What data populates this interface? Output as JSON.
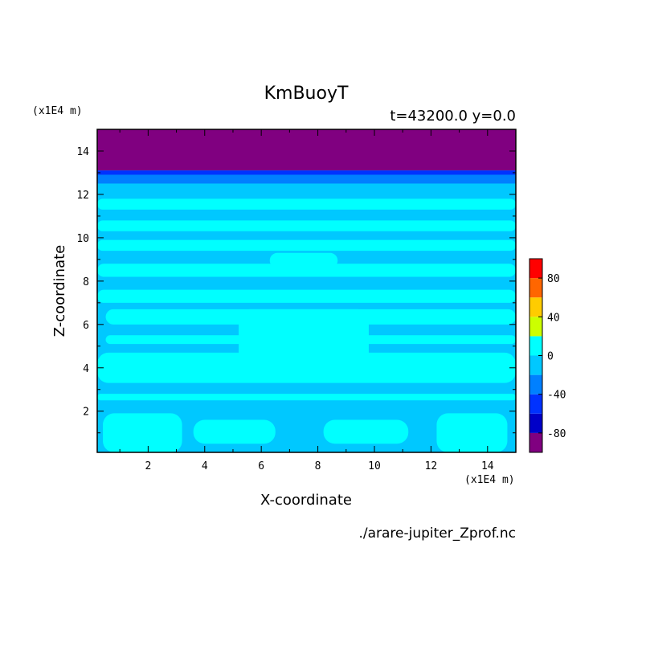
{
  "chart_data": {
    "type": "heatmap",
    "title": "KmBuoyT",
    "subtitle": "t=43200.0 y=0.0",
    "xlabel": "X-coordinate",
    "ylabel": "Z-coordinate",
    "x_unit": "(x1E4 m)",
    "y_unit": "(x1E4 m)",
    "source_file": "./arare-jupiter_Zprof.nc",
    "xlim": [
      0.2,
      15.0
    ],
    "ylim": [
      0.1,
      15.0
    ],
    "x_ticks": [
      2,
      4,
      6,
      8,
      10,
      12,
      14
    ],
    "y_ticks": [
      2,
      4,
      6,
      8,
      10,
      12,
      14
    ],
    "grid": false,
    "colorbar": {
      "levels": [
        -100,
        -80,
        -60,
        -40,
        -20,
        0,
        20,
        40,
        60,
        80,
        100
      ],
      "colors": [
        "#800080",
        "#0000c8",
        "#0032ff",
        "#0080ff",
        "#00c8ff",
        "#00ffff",
        "#ccff00",
        "#ffcc00",
        "#ff6600",
        "#ff0000",
        "#ffb4b4"
      ],
      "tick_labels": [
        "80",
        "40",
        "0",
        "-40",
        "-80"
      ],
      "tick_values": [
        80,
        40,
        0,
        -40,
        -80
      ]
    },
    "background_value": -10,
    "bands": [
      {
        "z0": 13.1,
        "z1": 15.0,
        "value": -90
      },
      {
        "z0": 12.9,
        "z1": 13.1,
        "value": -50
      },
      {
        "z0": 12.5,
        "z1": 12.9,
        "value": -30
      }
    ],
    "positive_regions": [
      {
        "x0": 0.2,
        "x1": 15.0,
        "z0": 11.3,
        "z1": 11.8
      },
      {
        "x0": 0.2,
        "x1": 15.0,
        "z0": 10.3,
        "z1": 10.8
      },
      {
        "x0": 0.2,
        "x1": 15.0,
        "z0": 9.4,
        "z1": 9.9
      },
      {
        "x0": 0.2,
        "x1": 15.0,
        "z0": 8.2,
        "z1": 8.8
      },
      {
        "x0": 0.2,
        "x1": 15.0,
        "z0": 7.0,
        "z1": 7.6
      },
      {
        "x0": 0.5,
        "x1": 15.0,
        "z0": 6.0,
        "z1": 6.7
      },
      {
        "x0": 0.5,
        "x1": 15.0,
        "z0": 5.1,
        "z1": 5.5
      },
      {
        "x0": 0.2,
        "x1": 15.0,
        "z0": 3.3,
        "z1": 4.7
      },
      {
        "x0": 0.2,
        "x1": 15.0,
        "z0": 2.5,
        "z1": 2.8
      },
      {
        "x0": 0.4,
        "x1": 3.2,
        "z0": 0.1,
        "z1": 1.9
      },
      {
        "x0": 3.6,
        "x1": 6.5,
        "z0": 0.5,
        "z1": 1.6
      },
      {
        "x0": 8.2,
        "x1": 11.2,
        "z0": 0.5,
        "z1": 1.6
      },
      {
        "x0": 12.2,
        "x1": 14.7,
        "z0": 0.1,
        "z1": 1.9
      },
      {
        "x0": 5.2,
        "x1": 9.8,
        "z0": 3.8,
        "z1": 6.7
      },
      {
        "x0": 6.3,
        "x1": 8.7,
        "z0": 8.6,
        "z1": 9.3
      }
    ]
  }
}
